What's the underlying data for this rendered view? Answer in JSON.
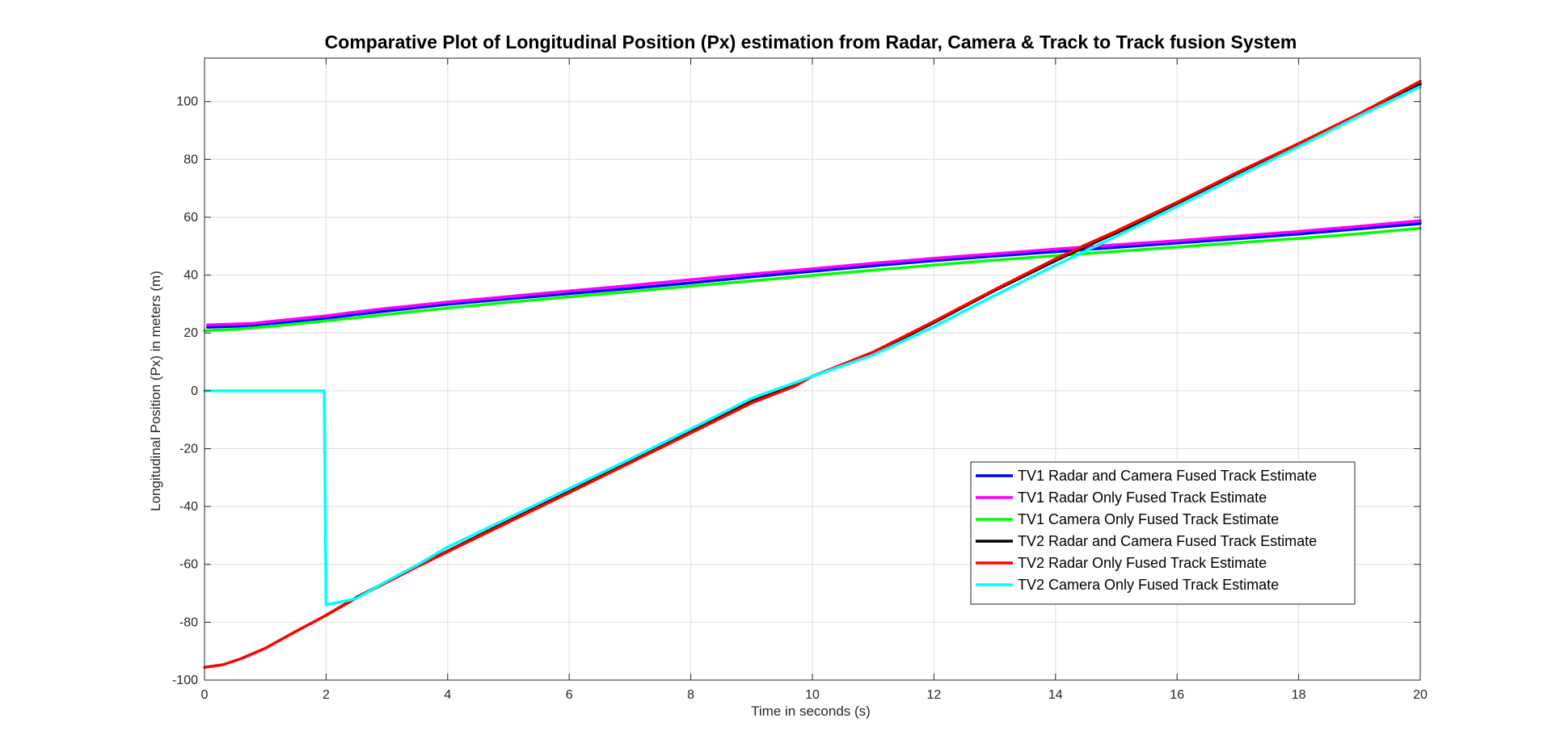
{
  "chart_data": {
    "type": "line",
    "title": "Comparative Plot of Longitudinal Position (Px) estimation from Radar, Camera & Track to Track fusion System",
    "xlabel": "Time in seconds (s)",
    "ylabel": "Longitudinal Position (Px) in meters (m)",
    "xlim": [
      0,
      20
    ],
    "ylim": [
      -100,
      115
    ],
    "xticks": [
      0,
      2,
      4,
      6,
      8,
      10,
      12,
      14,
      16,
      18,
      20
    ],
    "yticks": [
      -100,
      -80,
      -60,
      -40,
      -20,
      0,
      20,
      40,
      60,
      80,
      100
    ],
    "xtick_labels": [
      "0",
      "2",
      "4",
      "6",
      "8",
      "10",
      "12",
      "14",
      "16",
      "18",
      "20"
    ],
    "ytick_labels": [
      "-100",
      "-80",
      "-60",
      "-40",
      "-20",
      "0",
      "20",
      "40",
      "60",
      "80",
      "100"
    ],
    "grid": true,
    "legend_position": "lower-right",
    "series": [
      {
        "name": "TV1 Radar and Camera Fused Track Estimate",
        "color": "#0000ff",
        "x": [
          0.05,
          0.5,
          0.8,
          1,
          1.5,
          2,
          2.5,
          3,
          4,
          5,
          6,
          7,
          8,
          9,
          10,
          11,
          12,
          13,
          14,
          15,
          16,
          17,
          18,
          19,
          20
        ],
        "y": [
          22.0,
          22.3,
          22.6,
          23.1,
          24.1,
          25.1,
          26.4,
          27.6,
          29.9,
          31.8,
          33.6,
          35.4,
          37.3,
          39.4,
          41.3,
          43.2,
          45.0,
          46.6,
          48.1,
          49.6,
          51.1,
          52.6,
          54.2,
          56.0,
          57.8
        ]
      },
      {
        "name": "TV1 Radar Only Fused Track Estimate",
        "color": "#ff00ff",
        "x": [
          0.05,
          0.5,
          0.8,
          1,
          1.5,
          2,
          2.5,
          3,
          4,
          5,
          6,
          7,
          8,
          9,
          10,
          11,
          12,
          13,
          14,
          15,
          16,
          17,
          18,
          19,
          20
        ],
        "y": [
          22.8,
          23.1,
          23.3,
          23.8,
          24.9,
          25.9,
          27.3,
          28.5,
          30.7,
          32.6,
          34.5,
          36.4,
          38.4,
          40.4,
          42.2,
          44.1,
          45.8,
          47.4,
          49.0,
          50.5,
          51.9,
          53.5,
          55.1,
          56.9,
          58.8
        ]
      },
      {
        "name": "TV1 Camera Only Fused Track Estimate",
        "color": "#00ff00",
        "x": [
          0,
          0.5,
          1,
          2,
          3,
          4,
          5,
          6,
          7,
          8,
          9,
          10,
          11,
          12,
          13,
          14,
          15,
          16,
          17,
          18,
          19,
          20
        ],
        "y": [
          20.8,
          21.3,
          22.1,
          24.2,
          26.4,
          28.6,
          30.6,
          32.5,
          34.3,
          36.2,
          38.0,
          39.9,
          41.7,
          43.5,
          45.2,
          46.7,
          48.2,
          49.7,
          51.2,
          52.7,
          54.3,
          56.2
        ]
      },
      {
        "name": "TV2 Radar and Camera Fused Track Estimate",
        "color": "#000000",
        "x": [
          2,
          2.5,
          3,
          3.5,
          4,
          5,
          6,
          7,
          8,
          9,
          9.7,
          10,
          11,
          12,
          13,
          14,
          14.5,
          15,
          16,
          17,
          18,
          19,
          20
        ],
        "y": [
          -77.6,
          -71.4,
          -66.0,
          -60.6,
          -55.4,
          -45.0,
          -34.6,
          -24.3,
          -13.9,
          -3.6,
          2.0,
          5.0,
          13.0,
          23.6,
          34.7,
          45.0,
          49.9,
          54.6,
          64.5,
          75.1,
          85.0,
          95.3,
          106.0
        ]
      },
      {
        "name": "TV2 Radar Only Fused Track Estimate",
        "color": "#ff0000",
        "x": [
          0,
          0.3,
          0.6,
          1,
          1.5,
          2,
          2.5,
          3,
          3.5,
          4,
          5,
          6,
          7,
          8,
          9,
          9.7,
          10,
          11,
          12,
          13,
          14,
          14.5,
          15,
          16,
          17,
          18,
          19,
          20
        ],
        "y": [
          -95.6,
          -94.7,
          -92.6,
          -89.0,
          -83.2,
          -77.6,
          -71.6,
          -66.2,
          -60.8,
          -55.6,
          -45.4,
          -35.2,
          -24.9,
          -14.6,
          -4.2,
          1.5,
          5.0,
          13.4,
          24.0,
          35.0,
          45.6,
          50.5,
          55.2,
          65.2,
          75.6,
          85.5,
          95.8,
          107.0
        ]
      },
      {
        "name": "TV2 Camera Only Fused Track Estimate",
        "color": "#00ffff",
        "x": [
          0,
          1.97,
          2.0,
          2.5,
          3,
          3.5,
          4,
          5,
          6,
          7,
          8,
          9,
          10,
          11,
          12,
          13,
          14,
          14.5,
          15,
          16,
          17,
          18,
          19,
          20
        ],
        "y": [
          0,
          0,
          -74.0,
          -71.8,
          -65.8,
          -60.2,
          -54.0,
          -44.0,
          -33.8,
          -23.6,
          -13.2,
          -2.6,
          5.0,
          12.4,
          22.2,
          33.0,
          43.4,
          48.4,
          53.4,
          63.8,
          74.2,
          84.4,
          95.0,
          105.2
        ]
      }
    ]
  }
}
